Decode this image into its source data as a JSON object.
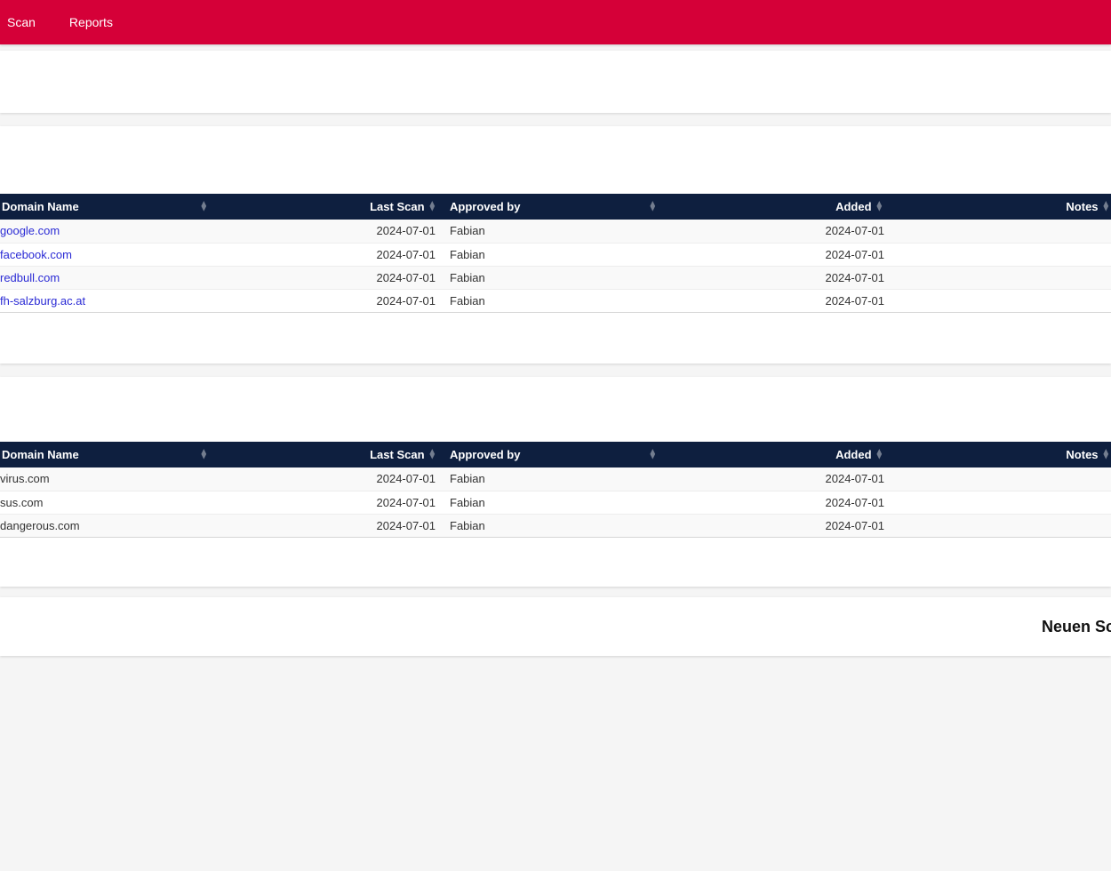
{
  "navbar": {
    "bg_color": "#d50038",
    "items": [
      {
        "label": "Scan"
      },
      {
        "label": "Reports"
      }
    ]
  },
  "colors": {
    "navbar_bg": "#d50038",
    "table_header_bg": "#0e1f3f",
    "link_color": "#2b2bd5",
    "page_bg": "#f5f5f5"
  },
  "tables": {
    "columns": [
      "Domain Name",
      "Last Scan",
      "Approved by",
      "Added",
      "Notes"
    ],
    "sort_icon": "◆",
    "whitelist": {
      "rows": [
        {
          "domain": "google.com",
          "last_scan": "2024-07-01",
          "approved_by": "Fabian",
          "added": "2024-07-01",
          "notes": ""
        },
        {
          "domain": "facebook.com",
          "last_scan": "2024-07-01",
          "approved_by": "Fabian",
          "added": "2024-07-01",
          "notes": ""
        },
        {
          "domain": "redbull.com",
          "last_scan": "2024-07-01",
          "approved_by": "Fabian",
          "added": "2024-07-01",
          "notes": ""
        },
        {
          "domain": "fh-salzburg.ac.at",
          "last_scan": "2024-07-01",
          "approved_by": "Fabian",
          "added": "2024-07-01",
          "notes": ""
        }
      ]
    },
    "blacklist": {
      "rows": [
        {
          "domain": "virus.com",
          "last_scan": "2024-07-01",
          "approved_by": "Fabian",
          "added": "2024-07-01",
          "notes": ""
        },
        {
          "domain": "sus.com",
          "last_scan": "2024-07-01",
          "approved_by": "Fabian",
          "added": "2024-07-01",
          "notes": ""
        },
        {
          "domain": "dangerous.com",
          "last_scan": "2024-07-01",
          "approved_by": "Fabian",
          "added": "2024-07-01",
          "notes": ""
        }
      ]
    }
  },
  "footer": {
    "new_scan_label": "Neuen Scan"
  }
}
